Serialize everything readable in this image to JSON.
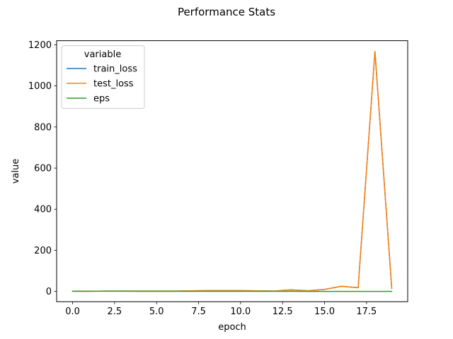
{
  "chart_data": {
    "type": "line",
    "title": "Performance Stats",
    "xlabel": "epoch",
    "ylabel": "value",
    "xlim": [
      -0.95,
      19.95
    ],
    "ylim": [
      -50,
      1220
    ],
    "x_ticks": [
      0.0,
      2.5,
      5.0,
      7.5,
      10.0,
      12.5,
      15.0,
      17.5
    ],
    "x_tick_labels": [
      "0.0",
      "2.5",
      "5.0",
      "7.5",
      "10.0",
      "12.5",
      "15.0",
      "17.5"
    ],
    "y_ticks": [
      0,
      200,
      400,
      600,
      800,
      1000,
      1200
    ],
    "y_tick_labels": [
      "0",
      "200",
      "400",
      "600",
      "800",
      "1000",
      "1200"
    ],
    "grid": false,
    "legend_title": "variable",
    "legend_position": "top-left",
    "x": [
      0,
      1,
      2,
      3,
      4,
      5,
      6,
      7,
      8,
      9,
      10,
      11,
      12,
      13,
      14,
      15,
      16,
      17,
      18,
      19
    ],
    "series": [
      {
        "name": "train_loss",
        "color": "#1f77b4",
        "values": [
          1,
          1,
          2,
          2,
          2,
          2,
          2,
          3,
          4,
          4,
          4,
          3,
          2,
          8,
          3,
          10,
          25,
          18,
          1168,
          15
        ]
      },
      {
        "name": "test_loss",
        "color": "#ff7f0e",
        "values": [
          1,
          1,
          2,
          2,
          2,
          2,
          2,
          3,
          4,
          4,
          4,
          3,
          2,
          8,
          3,
          10,
          25,
          18,
          1168,
          15
        ]
      },
      {
        "name": "eps",
        "color": "#2ca02c",
        "values": [
          0.9,
          0.9,
          0.8,
          0.8,
          0.7,
          0.7,
          0.6,
          0.6,
          0.5,
          0.5,
          0.4,
          0.4,
          0.3,
          0.3,
          0.2,
          0.2,
          0.1,
          0.1,
          0.1,
          0.1
        ]
      }
    ]
  }
}
